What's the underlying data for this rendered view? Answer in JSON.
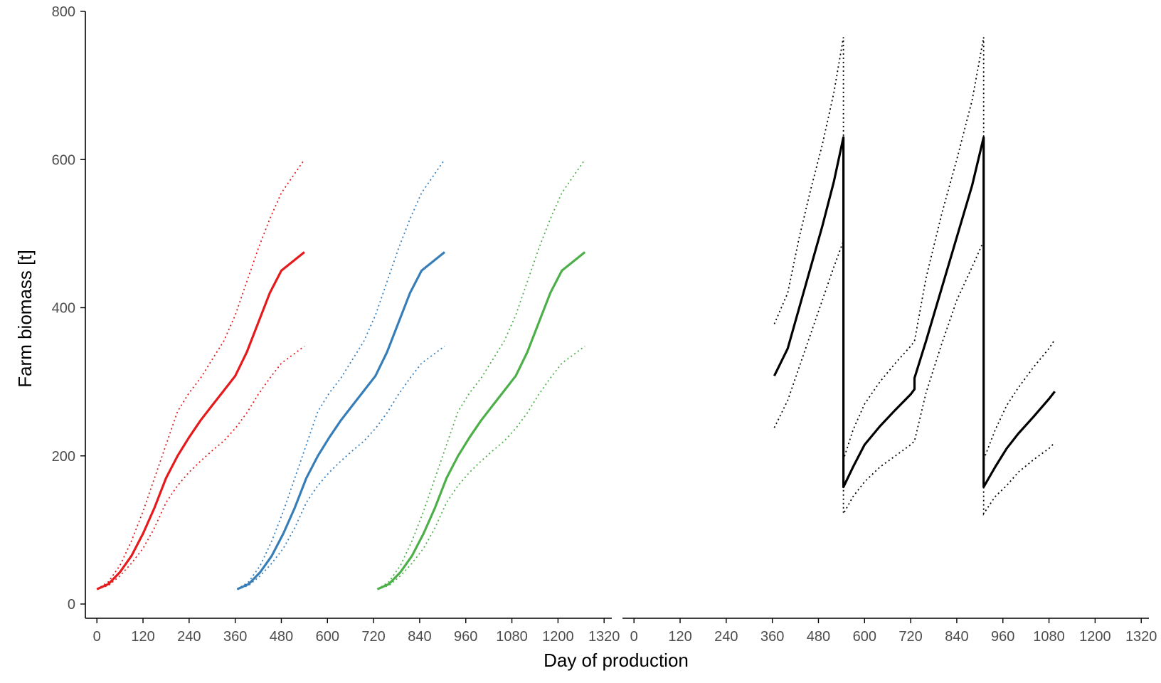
{
  "chart_data": {
    "type": "line",
    "xlabel": "Day of production",
    "ylabel": "Farm biomass [t]",
    "grid": false,
    "legend": "none",
    "ylim": [
      0,
      800
    ],
    "yticks": [
      0,
      200,
      400,
      600,
      800
    ],
    "xlim": [
      -30,
      1340
    ],
    "xticks": [
      0,
      120,
      240,
      360,
      480,
      600,
      720,
      840,
      960,
      1080,
      1200,
      1320
    ],
    "panels": [
      {
        "name": "left",
        "series": [
          {
            "color": "#e41a1c",
            "mean": [
              [
                0,
                20
              ],
              [
                30,
                27
              ],
              [
                60,
                43
              ],
              [
                90,
                65
              ],
              [
                120,
                95
              ],
              [
                150,
                130
              ],
              [
                180,
                170
              ],
              [
                210,
                200
              ],
              [
                240,
                225
              ],
              [
                270,
                248
              ],
              [
                300,
                268
              ],
              [
                330,
                288
              ],
              [
                360,
                308
              ],
              [
                390,
                340
              ],
              [
                420,
                380
              ],
              [
                450,
                420
              ],
              [
                480,
                450
              ],
              [
                540,
                475
              ]
            ],
            "upper": [
              [
                0,
                20
              ],
              [
                30,
                30
              ],
              [
                60,
                52
              ],
              [
                90,
                85
              ],
              [
                120,
                125
              ],
              [
                150,
                170
              ],
              [
                180,
                215
              ],
              [
                210,
                260
              ],
              [
                240,
                285
              ],
              [
                270,
                305
              ],
              [
                300,
                330
              ],
              [
                330,
                355
              ],
              [
                360,
                390
              ],
              [
                390,
                435
              ],
              [
                420,
                480
              ],
              [
                450,
                520
              ],
              [
                480,
                555
              ],
              [
                540,
                600
              ]
            ],
            "lower": [
              [
                0,
                20
              ],
              [
                30,
                25
              ],
              [
                60,
                38
              ],
              [
                90,
                55
              ],
              [
                120,
                75
              ],
              [
                150,
                103
              ],
              [
                180,
                137
              ],
              [
                210,
                160
              ],
              [
                240,
                178
              ],
              [
                270,
                193
              ],
              [
                300,
                207
              ],
              [
                330,
                220
              ],
              [
                360,
                237
              ],
              [
                390,
                258
              ],
              [
                420,
                283
              ],
              [
                450,
                305
              ],
              [
                480,
                325
              ],
              [
                540,
                348
              ]
            ]
          },
          {
            "color": "#377eb8",
            "mean": [
              [
                365,
                20
              ],
              [
                395,
                27
              ],
              [
                425,
                43
              ],
              [
                455,
                65
              ],
              [
                485,
                95
              ],
              [
                515,
                130
              ],
              [
                545,
                170
              ],
              [
                575,
                200
              ],
              [
                605,
                225
              ],
              [
                635,
                248
              ],
              [
                665,
                268
              ],
              [
                695,
                288
              ],
              [
                725,
                308
              ],
              [
                755,
                340
              ],
              [
                785,
                380
              ],
              [
                815,
                420
              ],
              [
                845,
                450
              ],
              [
                905,
                475
              ]
            ],
            "upper": [
              [
                365,
                20
              ],
              [
                395,
                30
              ],
              [
                425,
                52
              ],
              [
                455,
                85
              ],
              [
                485,
                125
              ],
              [
                515,
                170
              ],
              [
                545,
                215
              ],
              [
                575,
                260
              ],
              [
                605,
                285
              ],
              [
                635,
                305
              ],
              [
                665,
                330
              ],
              [
                695,
                355
              ],
              [
                725,
                390
              ],
              [
                755,
                435
              ],
              [
                785,
                480
              ],
              [
                815,
                520
              ],
              [
                845,
                555
              ],
              [
                905,
                600
              ]
            ],
            "lower": [
              [
                365,
                20
              ],
              [
                395,
                25
              ],
              [
                425,
                38
              ],
              [
                455,
                55
              ],
              [
                485,
                75
              ],
              [
                515,
                103
              ],
              [
                545,
                137
              ],
              [
                575,
                160
              ],
              [
                605,
                178
              ],
              [
                635,
                193
              ],
              [
                665,
                207
              ],
              [
                695,
                220
              ],
              [
                725,
                237
              ],
              [
                755,
                258
              ],
              [
                785,
                283
              ],
              [
                815,
                305
              ],
              [
                845,
                325
              ],
              [
                905,
                348
              ]
            ]
          },
          {
            "color": "#4daf4a",
            "mean": [
              [
                730,
                20
              ],
              [
                760,
                27
              ],
              [
                790,
                43
              ],
              [
                820,
                65
              ],
              [
                850,
                95
              ],
              [
                880,
                130
              ],
              [
                910,
                170
              ],
              [
                940,
                200
              ],
              [
                970,
                225
              ],
              [
                1000,
                248
              ],
              [
                1030,
                268
              ],
              [
                1060,
                288
              ],
              [
                1090,
                308
              ],
              [
                1120,
                340
              ],
              [
                1150,
                380
              ],
              [
                1180,
                420
              ],
              [
                1210,
                450
              ],
              [
                1270,
                475
              ]
            ],
            "upper": [
              [
                730,
                20
              ],
              [
                760,
                30
              ],
              [
                790,
                52
              ],
              [
                820,
                85
              ],
              [
                850,
                125
              ],
              [
                880,
                170
              ],
              [
                910,
                215
              ],
              [
                940,
                260
              ],
              [
                970,
                285
              ],
              [
                1000,
                305
              ],
              [
                1030,
                330
              ],
              [
                1060,
                355
              ],
              [
                1090,
                390
              ],
              [
                1120,
                435
              ],
              [
                1150,
                480
              ],
              [
                1180,
                520
              ],
              [
                1210,
                555
              ],
              [
                1270,
                600
              ]
            ],
            "lower": [
              [
                730,
                20
              ],
              [
                760,
                25
              ],
              [
                790,
                38
              ],
              [
                820,
                55
              ],
              [
                850,
                75
              ],
              [
                880,
                103
              ],
              [
                910,
                137
              ],
              [
                940,
                160
              ],
              [
                970,
                178
              ],
              [
                1000,
                193
              ],
              [
                1030,
                207
              ],
              [
                1060,
                220
              ],
              [
                1090,
                237
              ],
              [
                1120,
                258
              ],
              [
                1150,
                283
              ],
              [
                1180,
                305
              ],
              [
                1210,
                325
              ],
              [
                1270,
                348
              ]
            ]
          }
        ]
      },
      {
        "name": "right",
        "series": [
          {
            "color": "#000000",
            "mean": [
              [
                365,
                308
              ],
              [
                400,
                345
              ],
              [
                430,
                400
              ],
              [
                460,
                455
              ],
              [
                490,
                510
              ],
              [
                520,
                570
              ],
              [
                545,
                630
              ],
              [
                545,
                158
              ],
              [
                570,
                185
              ],
              [
                600,
                215
              ],
              [
                640,
                240
              ],
              [
                680,
                262
              ],
              [
                720,
                283
              ],
              [
                730,
                290
              ],
              [
                730,
                305
              ],
              [
                760,
                355
              ],
              [
                800,
                425
              ],
              [
                840,
                495
              ],
              [
                880,
                565
              ],
              [
                910,
                630
              ],
              [
                910,
                158
              ],
              [
                940,
                185
              ],
              [
                970,
                210
              ],
              [
                1000,
                230
              ],
              [
                1040,
                253
              ],
              [
                1080,
                277
              ],
              [
                1095,
                287
              ]
            ],
            "upper": [
              [
                365,
                378
              ],
              [
                400,
                420
              ],
              [
                430,
                495
              ],
              [
                460,
                560
              ],
              [
                490,
                620
              ],
              [
                520,
                690
              ],
              [
                545,
                765
              ],
              [
                545,
                195
              ],
              [
                570,
                235
              ],
              [
                600,
                270
              ],
              [
                640,
                300
              ],
              [
                680,
                325
              ],
              [
                720,
                348
              ],
              [
                730,
                355
              ],
              [
                760,
                440
              ],
              [
                800,
                525
              ],
              [
                840,
                600
              ],
              [
                880,
                680
              ],
              [
                910,
                765
              ],
              [
                910,
                195
              ],
              [
                940,
                235
              ],
              [
                970,
                268
              ],
              [
                1000,
                292
              ],
              [
                1040,
                320
              ],
              [
                1080,
                345
              ],
              [
                1095,
                357
              ]
            ],
            "lower": [
              [
                365,
                238
              ],
              [
                400,
                275
              ],
              [
                430,
                320
              ],
              [
                460,
                365
              ],
              [
                490,
                410
              ],
              [
                520,
                455
              ],
              [
                545,
                490
              ],
              [
                545,
                122
              ],
              [
                570,
                145
              ],
              [
                600,
                165
              ],
              [
                640,
                185
              ],
              [
                680,
                200
              ],
              [
                720,
                215
              ],
              [
                730,
                220
              ],
              [
                760,
                285
              ],
              [
                800,
                350
              ],
              [
                840,
                410
              ],
              [
                880,
                455
              ],
              [
                910,
                490
              ],
              [
                910,
                122
              ],
              [
                940,
                145
              ],
              [
                970,
                160
              ],
              [
                1000,
                178
              ],
              [
                1040,
                195
              ],
              [
                1080,
                210
              ],
              [
                1095,
                218
              ]
            ]
          }
        ]
      }
    ]
  }
}
